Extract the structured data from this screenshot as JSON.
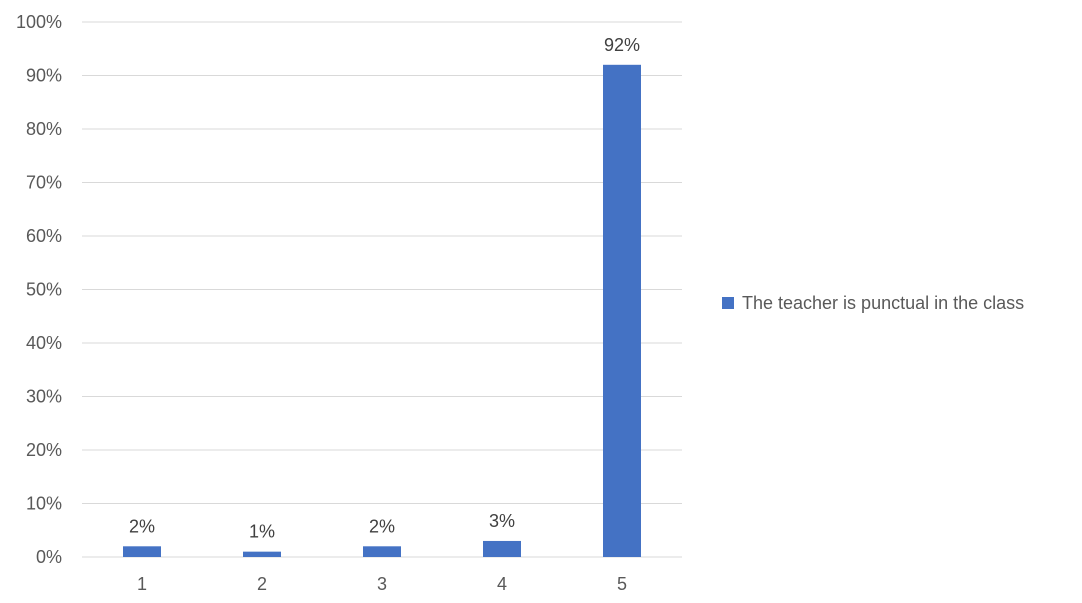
{
  "chart_data": {
    "type": "bar",
    "categories": [
      "1",
      "2",
      "3",
      "4",
      "5"
    ],
    "series": [
      {
        "name": "The teacher is punctual in the class",
        "values": [
          2,
          1,
          2,
          3,
          92
        ],
        "color": "#4472C4"
      }
    ],
    "data_labels": [
      "2%",
      "1%",
      "2%",
      "3%",
      "92%"
    ],
    "y_tick_labels": [
      "0%",
      "10%",
      "20%",
      "30%",
      "40%",
      "50%",
      "60%",
      "70%",
      "80%",
      "90%",
      "100%"
    ],
    "ylim": [
      0,
      100
    ],
    "y_unit": "%",
    "grid": true,
    "legend_position": "right",
    "colors": {
      "bar": "#4472C4",
      "gridline": "#D9D9D9",
      "axis_text": "#595959"
    }
  }
}
